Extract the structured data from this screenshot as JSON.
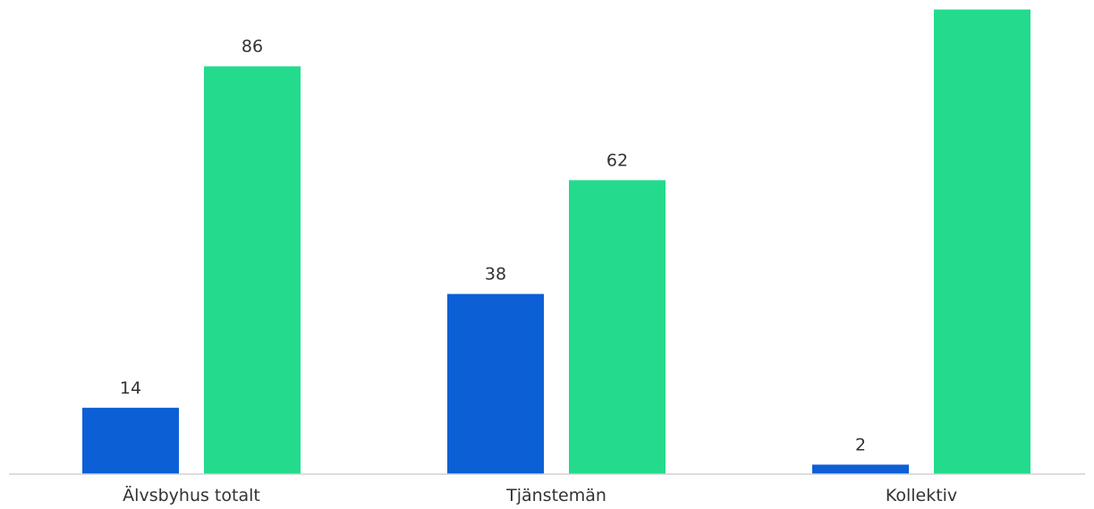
{
  "chart_data": {
    "type": "bar",
    "categories": [
      "Älvsbyhus totalt",
      "Tjänstemän",
      "Kollektiv"
    ],
    "series": [
      {
        "values": [
          14,
          38,
          2
        ],
        "color": "#0d5fd6"
      },
      {
        "values": [
          86,
          62,
          98
        ],
        "color": "#24db8d"
      }
    ],
    "data_labels": true,
    "ylim": [
      0,
      100
    ],
    "grid": false,
    "legend": "none",
    "axis_color": "#d0d0d0"
  }
}
